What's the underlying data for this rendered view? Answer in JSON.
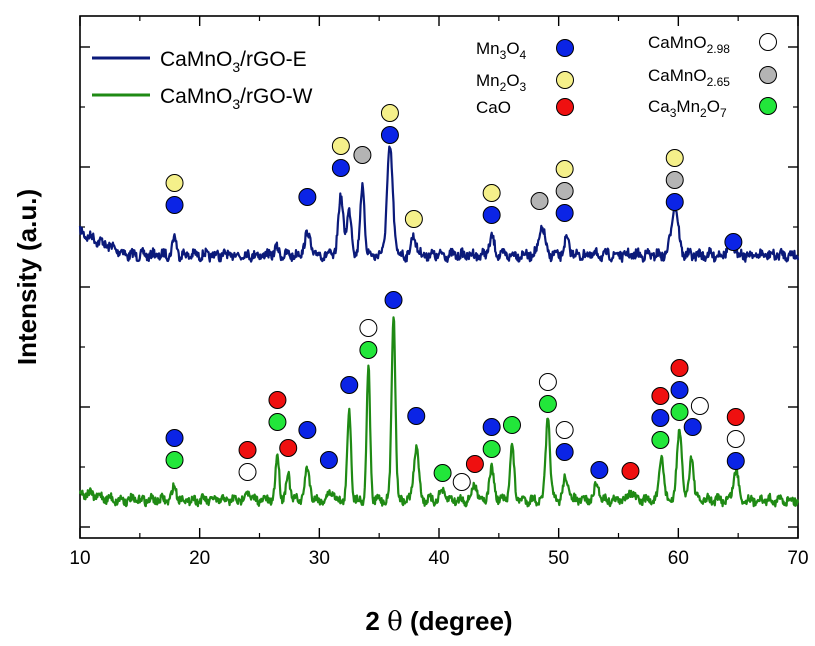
{
  "chart_data": {
    "type": "line",
    "xlabel_prefix": "2 ",
    "xlabel_symbol": "θ",
    "xlabel_suffix": " (degree)",
    "ylabel": "Intensity (a.u.)",
    "xlim": [
      10,
      70
    ],
    "xticks": [
      10,
      20,
      30,
      40,
      50,
      60,
      70
    ],
    "yticks_shown": false,
    "series": [
      {
        "name_main": "CaMnO",
        "name_sub": "3",
        "name_rest": "/rGO-E",
        "color": "#0b1a7a",
        "baseline": 0.0,
        "peaks": [
          {
            "x": 17.9,
            "h": 0.09,
            "w": 0.25
          },
          {
            "x": 26.4,
            "h": 0.03,
            "w": 0.3
          },
          {
            "x": 29.0,
            "h": 0.11,
            "w": 0.35
          },
          {
            "x": 31.8,
            "h": 0.3,
            "w": 0.3
          },
          {
            "x": 32.5,
            "h": 0.22,
            "w": 0.3
          },
          {
            "x": 33.6,
            "h": 0.36,
            "w": 0.25
          },
          {
            "x": 35.9,
            "h": 0.55,
            "w": 0.35
          },
          {
            "x": 37.9,
            "h": 0.1,
            "w": 0.3
          },
          {
            "x": 44.4,
            "h": 0.09,
            "w": 0.3
          },
          {
            "x": 48.6,
            "h": 0.14,
            "w": 0.35
          },
          {
            "x": 50.7,
            "h": 0.08,
            "w": 0.3
          },
          {
            "x": 59.7,
            "h": 0.26,
            "w": 0.4
          },
          {
            "x": 64.4,
            "h": 0.07,
            "w": 0.4
          }
        ]
      },
      {
        "name_main": "CaMnO",
        "name_sub": "3",
        "name_rest": "/rGO-W",
        "color": "#1f8a14",
        "baseline": 0.0,
        "peaks": [
          {
            "x": 17.9,
            "h": 0.09,
            "w": 0.25
          },
          {
            "x": 24.0,
            "h": 0.06,
            "w": 0.25
          },
          {
            "x": 26.5,
            "h": 0.3,
            "w": 0.22
          },
          {
            "x": 27.4,
            "h": 0.18,
            "w": 0.22
          },
          {
            "x": 29.0,
            "h": 0.2,
            "w": 0.3
          },
          {
            "x": 31.0,
            "h": 0.06,
            "w": 0.3
          },
          {
            "x": 32.5,
            "h": 0.6,
            "w": 0.22
          },
          {
            "x": 34.1,
            "h": 0.88,
            "w": 0.2
          },
          {
            "x": 36.2,
            "h": 1.25,
            "w": 0.22
          },
          {
            "x": 38.1,
            "h": 0.35,
            "w": 0.3
          },
          {
            "x": 40.3,
            "h": 0.06,
            "w": 0.3
          },
          {
            "x": 43.0,
            "h": 0.1,
            "w": 0.3
          },
          {
            "x": 44.4,
            "h": 0.2,
            "w": 0.3
          },
          {
            "x": 46.1,
            "h": 0.35,
            "w": 0.25
          },
          {
            "x": 49.1,
            "h": 0.55,
            "w": 0.25
          },
          {
            "x": 50.6,
            "h": 0.15,
            "w": 0.3
          },
          {
            "x": 53.2,
            "h": 0.1,
            "w": 0.3
          },
          {
            "x": 56.0,
            "h": 0.06,
            "w": 0.3
          },
          {
            "x": 58.6,
            "h": 0.3,
            "w": 0.25
          },
          {
            "x": 60.1,
            "h": 0.45,
            "w": 0.3
          },
          {
            "x": 61.1,
            "h": 0.3,
            "w": 0.25
          },
          {
            "x": 64.8,
            "h": 0.2,
            "w": 0.3
          }
        ]
      }
    ],
    "phases": [
      {
        "id": "mn3o4",
        "label_parts": [
          [
            "Mn",
            ""
          ],
          [
            "3",
            "sub"
          ],
          [
            "O",
            ""
          ],
          [
            "4",
            "sub"
          ]
        ],
        "color": "#0b24e6"
      },
      {
        "id": "mn2o3",
        "label_parts": [
          [
            "Mn",
            ""
          ],
          [
            "2",
            "sub"
          ],
          [
            "O",
            ""
          ],
          [
            "3",
            "sub"
          ]
        ],
        "color": "#f5f08a"
      },
      {
        "id": "cao",
        "label_parts": [
          [
            "CaO",
            ""
          ]
        ],
        "color": "#ef1010"
      },
      {
        "id": "camno298",
        "label_parts": [
          [
            "CaMnO",
            ""
          ],
          [
            "2.98",
            "sub"
          ]
        ],
        "color": "#ffffff"
      },
      {
        "id": "camno265",
        "label_parts": [
          [
            "CaMnO",
            ""
          ],
          [
            "2.65",
            "sub"
          ]
        ],
        "color": "#b4b4b4"
      },
      {
        "id": "ca3mn2o7",
        "label_parts": [
          [
            "Ca",
            ""
          ],
          [
            "3",
            "sub"
          ],
          [
            "Mn",
            ""
          ],
          [
            "2",
            "sub"
          ],
          [
            "O",
            ""
          ],
          [
            "7",
            "sub"
          ]
        ],
        "color": "#22e63a"
      }
    ],
    "markers_top": [
      {
        "x": 17.9,
        "stack": [
          "mn3o4",
          "mn2o3"
        ]
      },
      {
        "x": 29.0,
        "stack": [
          "mn3o4"
        ]
      },
      {
        "x": 31.8,
        "stack": [
          "mn3o4",
          "mn2o3"
        ]
      },
      {
        "x": 33.6,
        "stack": [
          "camno265"
        ]
      },
      {
        "x": 35.9,
        "stack": [
          "mn3o4",
          "mn2o3"
        ]
      },
      {
        "x": 37.9,
        "stack": [
          "mn2o3"
        ]
      },
      {
        "x": 44.4,
        "stack": [
          "mn3o4",
          "mn2o3"
        ]
      },
      {
        "x": 48.4,
        "stack": [
          "camno265"
        ]
      },
      {
        "x": 50.5,
        "stack": [
          "mn3o4",
          "camno265",
          "mn2o3"
        ]
      },
      {
        "x": 59.7,
        "stack": [
          "mn3o4",
          "camno265",
          "mn2o3"
        ]
      },
      {
        "x": 64.6,
        "stack": [
          "mn3o4"
        ]
      }
    ],
    "markers_bottom": [
      {
        "x": 17.9,
        "stack": [
          "ca3mn2o7",
          "mn3o4"
        ]
      },
      {
        "x": 24.0,
        "stack": [
          "camno298",
          "cao"
        ]
      },
      {
        "x": 26.5,
        "stack": [
          "ca3mn2o7",
          "cao"
        ]
      },
      {
        "x": 27.4,
        "stack": [
          "cao"
        ]
      },
      {
        "x": 29.0,
        "stack": [
          "mn3o4"
        ]
      },
      {
        "x": 30.8,
        "stack": [
          "mn3o4"
        ]
      },
      {
        "x": 32.5,
        "stack": [
          "mn3o4"
        ]
      },
      {
        "x": 34.1,
        "stack": [
          "ca3mn2o7",
          "camno298"
        ]
      },
      {
        "x": 36.2,
        "stack": [
          "mn3o4"
        ]
      },
      {
        "x": 38.1,
        "stack": [
          "mn3o4"
        ]
      },
      {
        "x": 40.3,
        "stack": [
          "ca3mn2o7"
        ]
      },
      {
        "x": 41.9,
        "stack": [
          "camno298"
        ]
      },
      {
        "x": 43.0,
        "stack": [
          "cao"
        ]
      },
      {
        "x": 44.4,
        "stack": [
          "ca3mn2o7",
          "mn3o4"
        ]
      },
      {
        "x": 46.1,
        "stack": [
          "ca3mn2o7"
        ]
      },
      {
        "x": 49.1,
        "stack": [
          "ca3mn2o7",
          "camno298"
        ]
      },
      {
        "x": 50.5,
        "stack": [
          "mn3o4",
          "camno298"
        ]
      },
      {
        "x": 53.4,
        "stack": [
          "mn3o4"
        ]
      },
      {
        "x": 56.0,
        "stack": [
          "cao"
        ]
      },
      {
        "x": 58.5,
        "stack": [
          "ca3mn2o7",
          "mn3o4",
          "cao"
        ]
      },
      {
        "x": 60.1,
        "stack": [
          "ca3mn2o7",
          "mn3o4",
          "cao"
        ]
      },
      {
        "x": 61.8,
        "stack": [
          "camno298"
        ]
      },
      {
        "x": 61.2,
        "stack": [
          "mn3o4"
        ]
      },
      {
        "x": 64.8,
        "stack": [
          "mn3o4",
          "camno298",
          "cao"
        ]
      }
    ]
  }
}
